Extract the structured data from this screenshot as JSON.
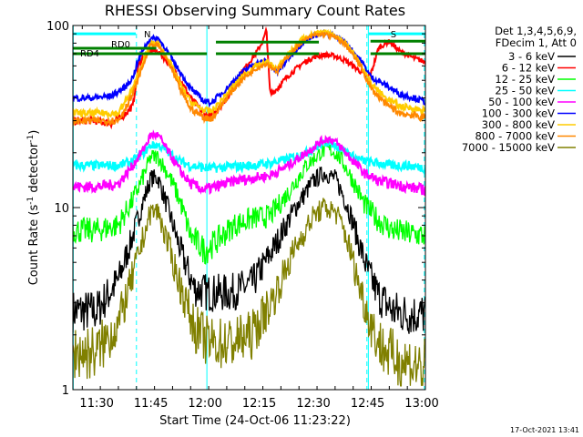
{
  "chart_data": {
    "type": "line",
    "title": "RHESSI Observing Summary Count Rates",
    "xlabel": "Start Time (24-Oct-06 11:23:22)",
    "ylabel_main": "Count Rate (s",
    "ylabel_sup1": "-1",
    "ylabel_mid": " detector",
    "ylabel_sup2": "-1",
    "ylabel_end": ")",
    "yscale": "log",
    "ylim": [
      1,
      100
    ],
    "y_ticks": [
      {
        "value": 1,
        "label": "1"
      },
      {
        "value": 10,
        "label": "10"
      },
      {
        "value": 100,
        "label": "100"
      }
    ],
    "xlim": [
      683.4,
      781
    ],
    "x_ticks": [
      {
        "value": 690,
        "label": "11:30"
      },
      {
        "value": 705,
        "label": "11:45"
      },
      {
        "value": 720,
        "label": "12:00"
      },
      {
        "value": 735,
        "label": "12:15"
      },
      {
        "value": 750,
        "label": "12:30"
      },
      {
        "value": 765,
        "label": "12:45"
      },
      {
        "value": 780,
        "label": "13:00"
      }
    ],
    "timestamp": "17-Oct-2021 13:41",
    "legend_header": [
      "Det 1,3,4,5,6,9,",
      "FDecim 1, Att 0"
    ],
    "series": [
      {
        "name": "3 - 6 keV",
        "color": "#000000",
        "x": [
          683.4,
          690,
          696,
          700,
          703,
          705,
          707,
          710,
          713,
          717,
          721,
          727,
          733,
          739,
          745,
          750,
          753,
          756,
          758,
          760,
          762,
          765,
          768,
          772,
          776,
          781
        ],
        "y": [
          2.7,
          2.7,
          4.0,
          7.0,
          11.0,
          14.5,
          14.5,
          9.5,
          6.0,
          3.6,
          3.4,
          3.4,
          3.8,
          6.0,
          10.0,
          14.0,
          15.5,
          14.5,
          12.0,
          9.5,
          7.0,
          4.5,
          3.3,
          2.7,
          2.6,
          2.6
        ]
      },
      {
        "name": "6 - 12 keV",
        "color": "#ff0000",
        "x": [
          683.4,
          689,
          694,
          698,
          700,
          701.5,
          703,
          705,
          707,
          709,
          712,
          716,
          720,
          722,
          726,
          730,
          734,
          736,
          737,
          738,
          740,
          743,
          747,
          750,
          753,
          756,
          759,
          763,
          765,
          766,
          768,
          771,
          774,
          778,
          781
        ],
        "y": [
          30,
          30,
          29,
          33,
          36,
          60,
          68,
          73,
          72,
          65,
          55,
          40,
          32,
          32,
          40,
          55,
          70,
          82,
          95,
          42,
          45,
          53,
          62,
          67,
          69,
          68,
          64,
          56,
          52,
          55,
          75,
          82,
          72,
          66,
          63
        ]
      },
      {
        "name": "12 - 25 keV",
        "color": "#00ff00",
        "x": [
          683.4,
          690,
          696,
          700,
          703,
          705,
          707,
          710,
          713,
          716,
          720,
          723,
          728,
          733,
          738,
          743,
          748,
          752,
          754,
          756,
          758,
          761,
          764,
          768,
          772,
          776,
          781
        ],
        "y": [
          7.5,
          7.5,
          8.0,
          11.0,
          15.0,
          19.0,
          19.0,
          15.0,
          11.0,
          7.0,
          5.8,
          6.5,
          8.0,
          8.7,
          9.0,
          12.0,
          17.0,
          20.0,
          21.0,
          20.0,
          18.0,
          14.0,
          10.5,
          8.5,
          7.5,
          7.2,
          7.0
        ]
      },
      {
        "name": "25 - 50 keV",
        "color": "#00ffff",
        "x": [
          683.4,
          690,
          696,
          700,
          703,
          705,
          707,
          710,
          713,
          716,
          720,
          723,
          728,
          733,
          738,
          743,
          748,
          752,
          754,
          756,
          758,
          761,
          764,
          768,
          772,
          776,
          781
        ],
        "y": [
          17,
          17,
          17,
          18,
          20,
          22,
          22,
          20,
          18,
          17,
          16.5,
          16.5,
          16.8,
          17,
          17.5,
          18.5,
          20,
          22,
          23,
          22,
          21,
          19,
          18,
          17.5,
          17,
          17,
          16.5
        ]
      },
      {
        "name": "50 - 100 keV",
        "color": "#ff00ff",
        "x": [
          683.4,
          690,
          696,
          700,
          703,
          705,
          707,
          710,
          713,
          716,
          720,
          723,
          728,
          733,
          738,
          743,
          748,
          752,
          754,
          756,
          758,
          761,
          764,
          768,
          772,
          776,
          781
        ],
        "y": [
          13,
          13,
          13.5,
          17,
          21,
          25,
          25,
          20,
          16,
          13.5,
          12.5,
          13,
          14,
          14.5,
          15,
          17,
          20,
          23,
          24,
          23,
          21,
          18,
          15.5,
          14,
          13.5,
          13,
          12.5
        ]
      },
      {
        "name": "100 - 300 keV",
        "color": "#0000ff",
        "x": [
          683.4,
          689,
          694,
          698,
          700,
          701.5,
          703,
          705,
          707,
          709,
          712,
          716,
          720,
          722,
          726,
          730,
          734,
          737,
          740,
          743,
          747,
          750,
          753,
          756,
          759,
          763,
          766,
          770,
          774,
          778,
          781
        ],
        "y": [
          40,
          40,
          41,
          46,
          52,
          64,
          75,
          85,
          85,
          75,
          60,
          45,
          38,
          38,
          45,
          55,
          62,
          64,
          55,
          66,
          80,
          88,
          90,
          88,
          80,
          65,
          52,
          47,
          42,
          40,
          38
        ]
      },
      {
        "name": "300 - 800 keV",
        "color": "#ffcc00",
        "x": [
          683.4,
          690,
          696,
          700,
          703,
          705,
          707,
          710,
          713,
          716,
          720,
          722,
          726,
          730,
          734,
          737,
          740,
          743,
          747,
          750,
          753,
          756,
          759,
          763,
          766,
          770,
          774,
          778,
          781
        ],
        "y": [
          33,
          33,
          33,
          45,
          65,
          80,
          80,
          65,
          48,
          38,
          34,
          34,
          42,
          52,
          60,
          63,
          58,
          70,
          85,
          90,
          92,
          88,
          80,
          62,
          48,
          40,
          36,
          35,
          34
        ]
      },
      {
        "name": "800 - 7000 keV",
        "color": "#ff8800",
        "x": [
          683.4,
          690,
          696,
          700,
          703,
          705,
          707,
          710,
          713,
          716,
          720,
          722,
          726,
          730,
          734,
          737,
          740,
          743,
          747,
          750,
          753,
          756,
          759,
          763,
          766,
          770,
          774,
          778,
          781
        ],
        "y": [
          30,
          30,
          30,
          42,
          62,
          78,
          78,
          62,
          45,
          35,
          31,
          31,
          40,
          50,
          58,
          62,
          56,
          68,
          82,
          88,
          90,
          86,
          78,
          60,
          45,
          37,
          33,
          32,
          31
        ]
      },
      {
        "name": "7000 - 15000 keV",
        "color": "#808000",
        "x": [
          683.4,
          690,
          696,
          700,
          703,
          705,
          707,
          710,
          713,
          717,
          721,
          727,
          733,
          739,
          745,
          750,
          753,
          756,
          758,
          760,
          762,
          765,
          768,
          772,
          776,
          781
        ],
        "y": [
          1.6,
          1.6,
          2.3,
          4.2,
          7.0,
          9.5,
          9.5,
          6.0,
          3.8,
          2.2,
          1.8,
          1.8,
          2.0,
          3.2,
          6.0,
          9.0,
          10.0,
          9.5,
          8.0,
          6.0,
          4.2,
          2.6,
          1.8,
          1.5,
          1.4,
          1.3
        ]
      }
    ],
    "attenuator_segments": [
      {
        "label": "RD0",
        "x0": 683.4,
        "x1": 706.5,
        "y": 75
      },
      {
        "label": "RD4",
        "x0": 683.4,
        "x1": 720.5,
        "y": 70
      },
      {
        "label": "",
        "x0": 723,
        "x1": 751.5,
        "y": 81
      },
      {
        "label": "",
        "x0": 723,
        "x1": 751.5,
        "y": 70
      },
      {
        "label": "",
        "x0": 765.8,
        "x1": 781,
        "y": 82
      },
      {
        "label": "",
        "x0": 765.8,
        "x1": 781,
        "y": 70
      }
    ],
    "night_bars": [
      {
        "x0": 683.4,
        "x1": 700.8,
        "y": 90,
        "label": "N"
      },
      {
        "x0": 765.3,
        "x1": 781,
        "y": 90,
        "label": "S"
      }
    ],
    "markers_solid": [
      683.5,
      720.5,
      765.2
    ],
    "markers_dashed": [
      701.0,
      764.8,
      780.7
    ]
  }
}
